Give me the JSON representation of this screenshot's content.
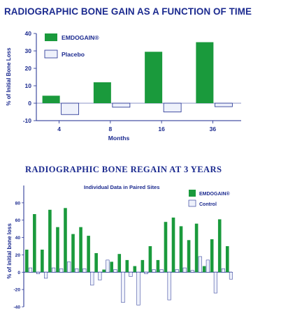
{
  "colors": {
    "text": "#1b2a8f",
    "emdogain": "#1a9a3c",
    "placebo": "#eef1fb",
    "outline": "#1b2a8f"
  },
  "chart_data": [
    {
      "type": "bar",
      "title": "RADIOGRAPHIC BONE GAIN AS A FUNCTION OF TIME",
      "xlabel": "Months",
      "ylabel": "% of Initial Bone Loss",
      "categories": [
        "4",
        "8",
        "16",
        "36"
      ],
      "ylim": [
        -10,
        40
      ],
      "yticks": [
        "40",
        "30",
        "20",
        "10",
        "0",
        "-10"
      ],
      "legend_position": "top-left",
      "series": [
        {
          "name": "EMDOGAIN®",
          "values": [
            4.3,
            12,
            29.5,
            35
          ]
        },
        {
          "name": "Placebo",
          "values": [
            -6.5,
            -2.3,
            -5,
            -2
          ]
        }
      ]
    },
    {
      "type": "bar",
      "title": "RADIOGRAPHIC BONE REGAIN AT 3 YEARS",
      "subtitle": "Individual Data in Paired Sites",
      "ylabel": "% of initial bone loss",
      "ylim": [
        -40,
        100
      ],
      "yticks": [
        "80",
        "60",
        "40",
        "20",
        "0",
        "-20",
        "-40"
      ],
      "legend_position": "top-right",
      "series": [
        {
          "name": "EMDOGAIN®",
          "values": [
            26,
            67,
            26,
            72,
            52,
            74,
            44,
            52,
            42,
            22,
            3,
            12,
            21,
            14,
            7,
            14,
            30,
            14,
            58,
            63,
            53,
            37,
            56,
            7,
            38,
            61,
            30
          ]
        },
        {
          "name": "Control",
          "values": [
            5,
            -2,
            -7,
            5,
            4,
            12,
            4,
            4,
            -15,
            -9,
            14,
            3,
            -35,
            -5,
            -38,
            -2,
            3,
            3,
            -32,
            3,
            5,
            2,
            18,
            14,
            -24,
            4,
            -8
          ]
        }
      ]
    }
  ]
}
